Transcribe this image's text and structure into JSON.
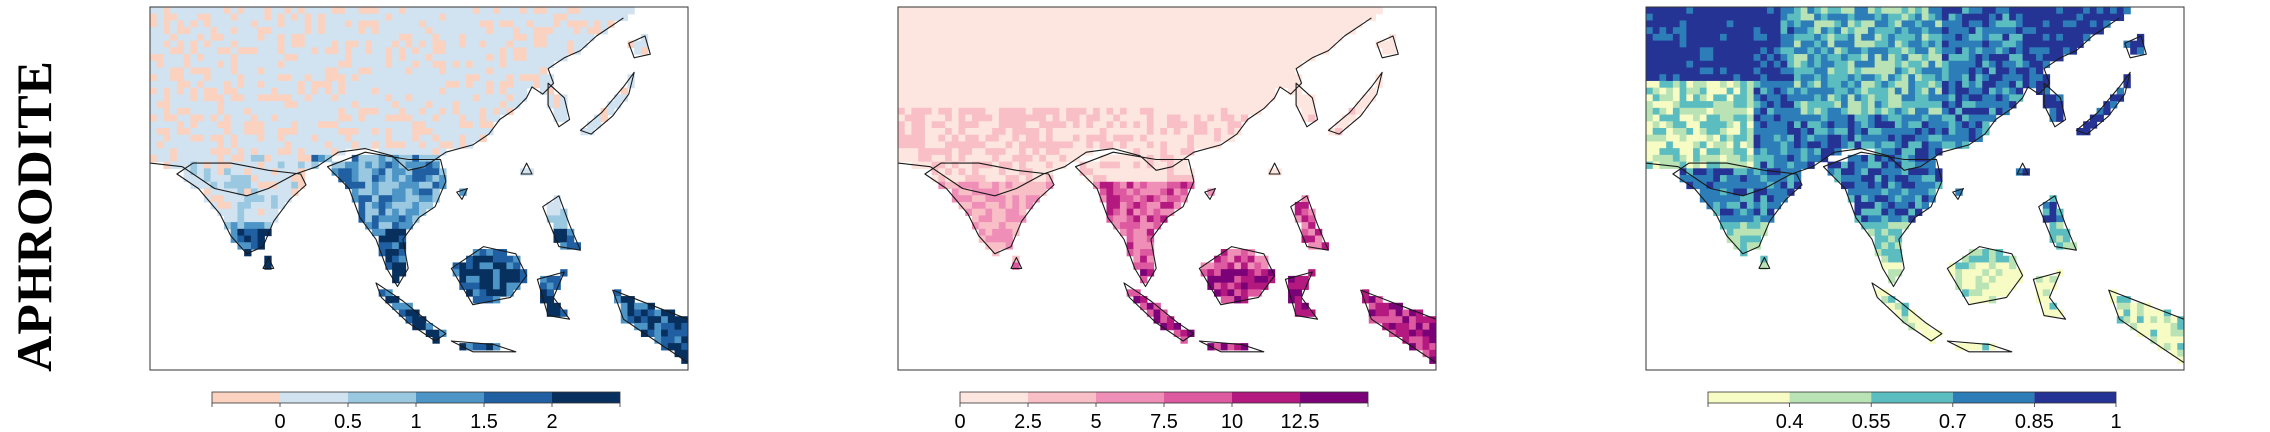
{
  "row_label": "APHRODITE",
  "panels": [
    {
      "id": "panel-1",
      "palette": "blue-diverging",
      "colorbar": {
        "colors": [
          "#fad2bf",
          "#d1e3f1",
          "#9ac8e0",
          "#4d95c6",
          "#2060a2",
          "#08305e"
        ],
        "tick_values": [
          0,
          0.5,
          1,
          1.5,
          2
        ],
        "tick_labels": [
          "0",
          "0.5",
          "1",
          "1.5",
          "2"
        ],
        "boundaries": [
          -0.5,
          0,
          0.5,
          1,
          1.5,
          2,
          2.5
        ]
      }
    },
    {
      "id": "panel-2",
      "palette": "pink-purple",
      "colorbar": {
        "colors": [
          "#fde6df",
          "#f9bfc6",
          "#ef8fb8",
          "#dd59a0",
          "#b3197f",
          "#7a0177"
        ],
        "tick_values": [
          0,
          2.5,
          5,
          7.5,
          10,
          12.5
        ],
        "tick_labels": [
          "0",
          "2.5",
          "5",
          "7.5",
          "10",
          "12.5"
        ],
        "boundaries": [
          0,
          2.5,
          5,
          7.5,
          10,
          12.5,
          15
        ]
      }
    },
    {
      "id": "panel-3",
      "palette": "yellow-green-blue",
      "colorbar": {
        "colors": [
          "#f7fbc4",
          "#b9e3b5",
          "#5cbdc0",
          "#2d7eb8",
          "#253494"
        ],
        "tick_values": [
          0.4,
          0.55,
          0.7,
          0.85,
          1
        ],
        "tick_labels": [
          "0.4",
          "0.55",
          "0.7",
          "0.85",
          "1"
        ],
        "boundaries": [
          0.25,
          0.4,
          0.55,
          0.7,
          0.85,
          1
        ]
      }
    }
  ]
}
